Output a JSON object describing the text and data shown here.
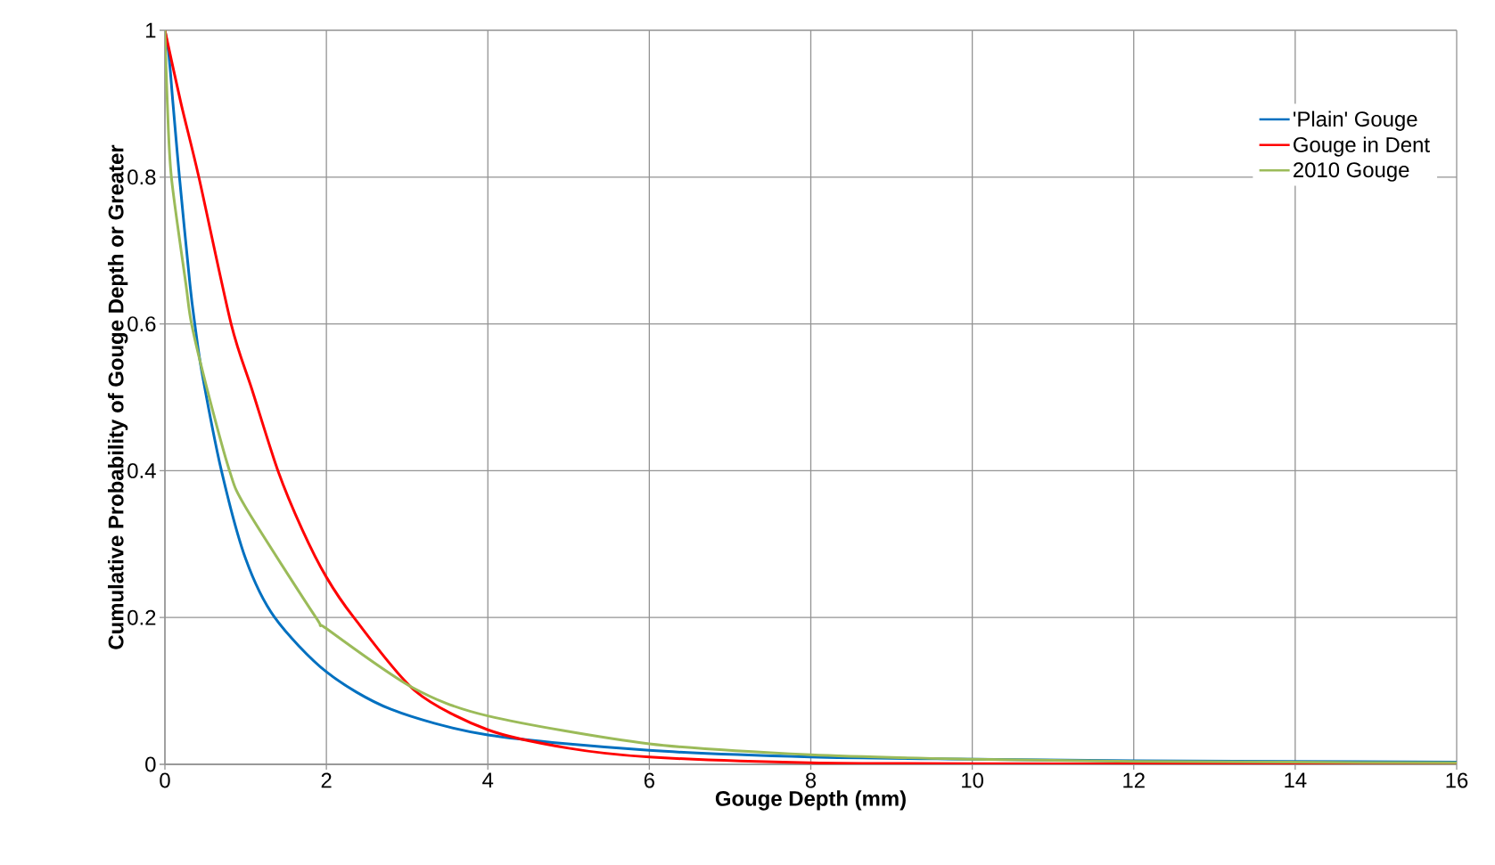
{
  "chart_data": {
    "type": "line",
    "xlabel": "Gouge Depth (mm)",
    "ylabel": "Cumulative Probability of Gouge Depth or Greater",
    "xlim": [
      0,
      16
    ],
    "xticks": [
      0,
      2,
      4,
      6,
      8,
      10,
      12,
      14,
      16
    ],
    "ylim": [
      0,
      1
    ],
    "yticks": [
      0,
      0.2,
      0.4,
      0.6,
      0.8,
      1
    ],
    "grid": true,
    "legend": "top right",
    "marker": "none",
    "line_style": "solid",
    "series": [
      {
        "name": "'Plain' Gouge",
        "color": "#0070c0",
        "x": [
          0,
          0.05,
          0.1,
          0.18,
          0.31,
          0.37,
          0.46,
          0.7,
          1,
          1.36,
          2,
          2.8,
          4,
          6,
          8,
          10,
          12,
          16
        ],
        "values": [
          1,
          0.965,
          0.9,
          0.8,
          0.654,
          0.6,
          0.533,
          0.4,
          0.28,
          0.2,
          0.126,
          0.075,
          0.04,
          0.019,
          0.01,
          0.007,
          0.005,
          0.003
        ]
      },
      {
        "name": "Gouge in Dent",
        "color": "#ff0000",
        "x": [
          0,
          0.2,
          0.42,
          0.82,
          1.08,
          1.4,
          1.7,
          2,
          2.34,
          3.1,
          4,
          5,
          6,
          8,
          10,
          16
        ],
        "values": [
          1,
          0.9,
          0.8,
          0.6,
          0.51,
          0.4,
          0.32,
          0.255,
          0.2,
          0.1,
          0.047,
          0.022,
          0.01,
          0.002,
          0.001,
          0
        ]
      },
      {
        "name": "2010 Gouge",
        "color": "#9bbb59",
        "x": [
          0,
          0.03,
          0.08,
          0.26,
          0.33,
          0.53,
          0.8,
          1,
          1.87,
          2,
          3.06,
          4,
          6,
          8,
          10,
          12,
          16
        ],
        "values": [
          1,
          0.9,
          0.8,
          0.654,
          0.6,
          0.508,
          0.4,
          0.35,
          0.2,
          0.185,
          0.105,
          0.066,
          0.028,
          0.013,
          0.007,
          0.004,
          0.002
        ]
      }
    ]
  }
}
